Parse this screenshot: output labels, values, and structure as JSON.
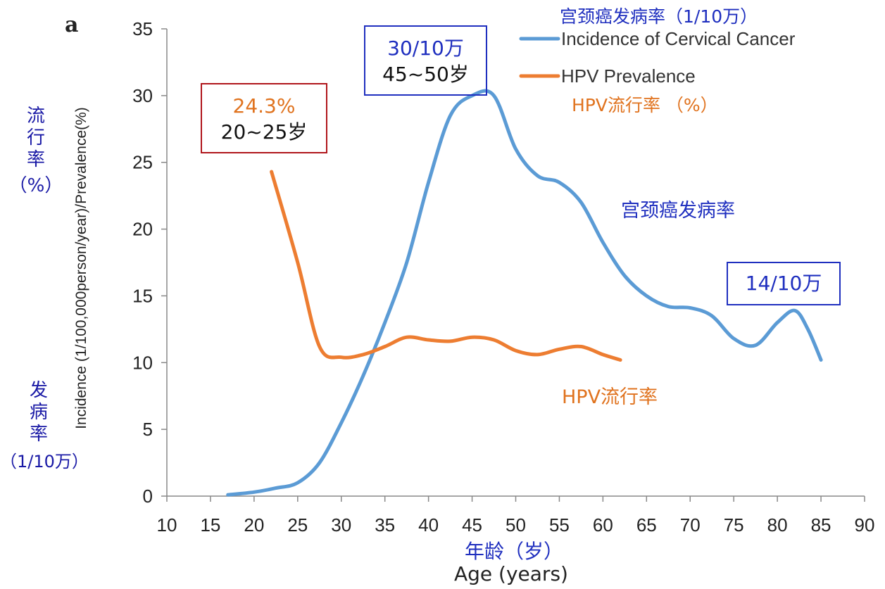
{
  "panel_label": "a",
  "chart_data": {
    "type": "line",
    "x": [
      15,
      20,
      25,
      30,
      35,
      40,
      45,
      50,
      55,
      60,
      65,
      70,
      75,
      80,
      85,
      90
    ],
    "xlim": [
      10,
      90
    ],
    "ylim": [
      0,
      35
    ],
    "xticks": [
      "10",
      "15",
      "20",
      "25",
      "30",
      "35",
      "40",
      "45",
      "50",
      "55",
      "60",
      "65",
      "70",
      "75",
      "80",
      "85",
      "90"
    ],
    "yticks": [
      "0",
      "5",
      "10",
      "15",
      "20",
      "25",
      "30",
      "35"
    ],
    "xlabel": "Age (years)",
    "xlabel_zh": "年龄（岁）",
    "ylabel": "Incidence (1/100,000person/year)/Prevalence(%)",
    "grid": false,
    "legend_position": "top-right",
    "series": [
      {
        "name": "Incidence of Cervical Cancer",
        "name_zh": "宫颈癌发病率（1/10万）",
        "color": "#5b9bd5",
        "points": [
          [
            17,
            0.1
          ],
          [
            20,
            0.3
          ],
          [
            22.5,
            0.6
          ],
          [
            25,
            1.0
          ],
          [
            27.5,
            2.5
          ],
          [
            30,
            5.5
          ],
          [
            32.5,
            9
          ],
          [
            35,
            13
          ],
          [
            37.5,
            17.5
          ],
          [
            40,
            23.5
          ],
          [
            42.5,
            28.5
          ],
          [
            45,
            30
          ],
          [
            47.5,
            30
          ],
          [
            50,
            26
          ],
          [
            52.5,
            24
          ],
          [
            55,
            23.5
          ],
          [
            57.5,
            22
          ],
          [
            60,
            19
          ],
          [
            62.5,
            16.5
          ],
          [
            65,
            15
          ],
          [
            67.5,
            14.2
          ],
          [
            70,
            14.1
          ],
          [
            72.5,
            13.5
          ],
          [
            75,
            11.8
          ],
          [
            77.5,
            11.3
          ],
          [
            80,
            13
          ],
          [
            82,
            13.9
          ],
          [
            83.5,
            12.5
          ],
          [
            85,
            10.2
          ]
        ]
      },
      {
        "name": "HPV Prevalence",
        "name_zh": "HPV流行率 （%）",
        "color": "#ed7d31",
        "points": [
          [
            22,
            24.3
          ],
          [
            25,
            17.5
          ],
          [
            27.5,
            11.2
          ],
          [
            30,
            10.4
          ],
          [
            32.5,
            10.6
          ],
          [
            35,
            11.2
          ],
          [
            37.5,
            11.9
          ],
          [
            40,
            11.7
          ],
          [
            42.5,
            11.6
          ],
          [
            45,
            11.9
          ],
          [
            47.5,
            11.7
          ],
          [
            50,
            10.9
          ],
          [
            52.5,
            10.6
          ],
          [
            55,
            11.0
          ],
          [
            57.5,
            11.2
          ],
          [
            60,
            10.6
          ],
          [
            62,
            10.2
          ]
        ]
      }
    ]
  },
  "annotations": {
    "y_zh_top": [
      "流",
      "行",
      "率",
      "（%）"
    ],
    "y_zh_bottom": [
      "发",
      "病",
      "率",
      "（1/10万）"
    ],
    "peak_hpv_value": "24.3%",
    "peak_hpv_age": "20~25岁",
    "peak_incidence_value": "30/10万",
    "peak_incidence_age": "45~50岁",
    "late_incidence_value": "14/10万",
    "incidence_zh": "宫颈癌发病率",
    "hpv_zh": "HPV流行率"
  }
}
